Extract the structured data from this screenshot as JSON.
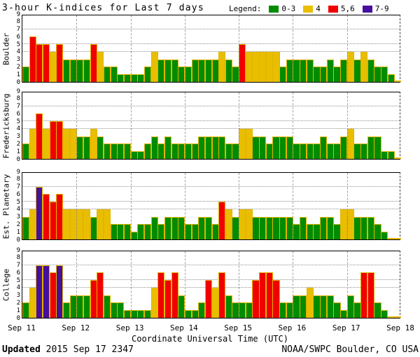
{
  "title": "3-hour K-indices for Last 7 days",
  "legend": {
    "label": "Legend:",
    "items": [
      {
        "label": "0-3",
        "color": "#008C00",
        "icon": "green-swatch"
      },
      {
        "label": "4",
        "color": "#E9BE00",
        "icon": "yellow-swatch"
      },
      {
        "label": "5,6",
        "color": "#F00000",
        "icon": "red-swatch"
      },
      {
        "label": "7-9",
        "color": "#45109B",
        "icon": "purple-swatch"
      }
    ]
  },
  "footer": {
    "updated_label": "Updated",
    "updated_value": "2015 Sep 17 2347",
    "credit": "NOAA/SWPC Boulder, CO USA"
  },
  "chart_data": {
    "type": "bar",
    "title": "3-hour K-indices for Last 7 days",
    "xlabel": "Coordinate Universal Time (UTC)",
    "x_tick_labels": [
      "Sep 11",
      "Sep 12",
      "Sep 13",
      "Sep 14",
      "Sep 15",
      "Sep 16",
      "Sep 17",
      "Sep 18"
    ],
    "ylim": [
      0,
      9
    ],
    "y_gridlines": [
      4,
      5,
      7
    ],
    "bars_per_day": 8,
    "interval_hours": 3,
    "grid": true,
    "legend_position": "top-right",
    "colors": {
      "green": "#008C00",
      "yellow": "#E9BE00",
      "red": "#F00000",
      "purple": "#45109B",
      "bar_outline": "#E2B400"
    },
    "color_rule": {
      "green": "K 0-3",
      "yellow": "K 4",
      "red": "K 5-6",
      "purple": "K 7-9"
    },
    "panels": [
      {
        "station": "Boulder",
        "values": [
          2,
          6,
          5,
          5,
          4,
          5,
          3,
          3,
          3,
          3,
          5,
          4,
          2,
          2,
          1,
          1,
          1,
          1,
          2,
          4,
          3,
          3,
          3,
          2,
          2,
          3,
          3,
          3,
          3,
          4,
          3,
          2,
          5,
          4,
          4,
          4,
          4,
          4,
          2,
          3,
          3,
          3,
          3,
          2,
          2,
          3,
          2,
          3,
          4,
          3,
          4,
          3,
          2,
          2,
          1,
          0
        ]
      },
      {
        "station": "Fredericksburg",
        "values": [
          2,
          4,
          6,
          4,
          5,
          5,
          4,
          4,
          3,
          3,
          4,
          3,
          2,
          2,
          2,
          2,
          1,
          1,
          2,
          3,
          2,
          3,
          2,
          2,
          2,
          2,
          3,
          3,
          3,
          3,
          2,
          2,
          4,
          4,
          3,
          3,
          2,
          3,
          3,
          3,
          2,
          2,
          2,
          2,
          3,
          2,
          2,
          3,
          4,
          2,
          2,
          3,
          3,
          1,
          1,
          0
        ]
      },
      {
        "station": "Est. Planetary",
        "values": [
          3,
          4,
          7,
          6,
          5,
          6,
          4,
          4,
          4,
          4,
          3,
          4,
          4,
          2,
          2,
          2,
          1,
          2,
          2,
          3,
          2,
          3,
          3,
          3,
          2,
          2,
          3,
          3,
          2,
          5,
          4,
          3,
          4,
          4,
          3,
          3,
          3,
          3,
          3,
          3,
          2,
          3,
          2,
          2,
          3,
          3,
          2,
          4,
          4,
          3,
          3,
          3,
          2,
          1,
          0,
          0
        ]
      },
      {
        "station": "College",
        "values": [
          2,
          4,
          7,
          7,
          6,
          7,
          2,
          3,
          3,
          3,
          5,
          6,
          3,
          2,
          2,
          1,
          1,
          1,
          1,
          4,
          6,
          5,
          6,
          3,
          1,
          1,
          2,
          5,
          4,
          6,
          3,
          2,
          2,
          2,
          5,
          6,
          6,
          5,
          2,
          2,
          3,
          3,
          4,
          3,
          3,
          3,
          2,
          1,
          3,
          2,
          6,
          6,
          2,
          1,
          0,
          0
        ]
      }
    ]
  }
}
